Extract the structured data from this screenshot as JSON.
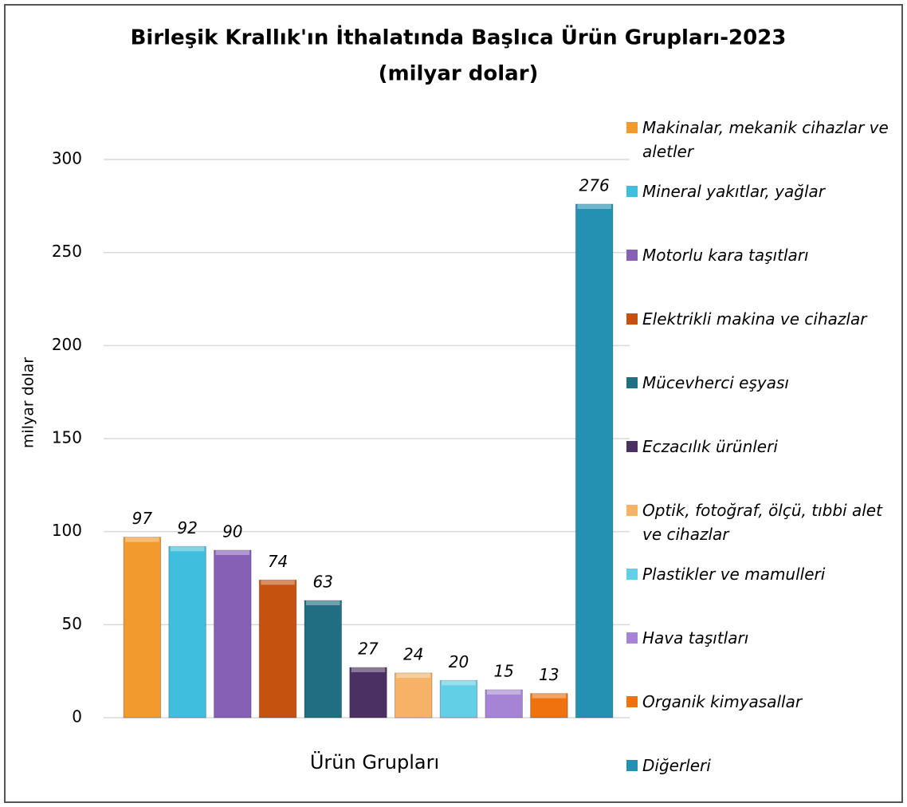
{
  "chart_data": {
    "type": "bar",
    "title": "Birleşik Krallık'ın İthalatında Başlıca Ürün Grupları-2023",
    "subtitle": "(milyar dolar)",
    "y_label": "milyar dolar",
    "categories": [
      "Ürün Grupları"
    ],
    "series": [
      {
        "name": "Makinalar, mekanik cihazlar ve aletler",
        "color": "#f39a2e",
        "values": [
          97
        ]
      },
      {
        "name": "Mineral yakıtlar, yağlar",
        "color": "#3fbfdd",
        "values": [
          92
        ]
      },
      {
        "name": "Motorlu kara taşıtları",
        "color": "#8560b5",
        "values": [
          90
        ]
      },
      {
        "name": "Elektrikli makina ve cihazlar",
        "color": "#c5530f",
        "values": [
          74
        ]
      },
      {
        "name": "Mücevherci eşyası",
        "color": "#1f6f80",
        "values": [
          63
        ]
      },
      {
        "name": "Eczacılık ürünleri",
        "color": "#4b3063",
        "values": [
          27
        ]
      },
      {
        "name": "Optik, fotoğraf, ölçü, tıbbi alet ve cihazlar",
        "color": "#f6b366",
        "values": [
          24
        ]
      },
      {
        "name": "Plastikler ve mamulleri",
        "color": "#63cfe6",
        "values": [
          20
        ]
      },
      {
        "name": "Hava taşıtları",
        "color": "#a584d6",
        "values": [
          15
        ]
      },
      {
        "name": "Organik kimyasallar",
        "color": "#f0720f",
        "values": [
          13
        ]
      },
      {
        "name": "Diğerleri",
        "color": "#2491b3",
        "values": [
          276
        ]
      }
    ],
    "ylim": [
      0,
      300
    ],
    "yticks": [
      0,
      50,
      100,
      150,
      200,
      250,
      300
    ],
    "grid": true,
    "legend": "right"
  }
}
